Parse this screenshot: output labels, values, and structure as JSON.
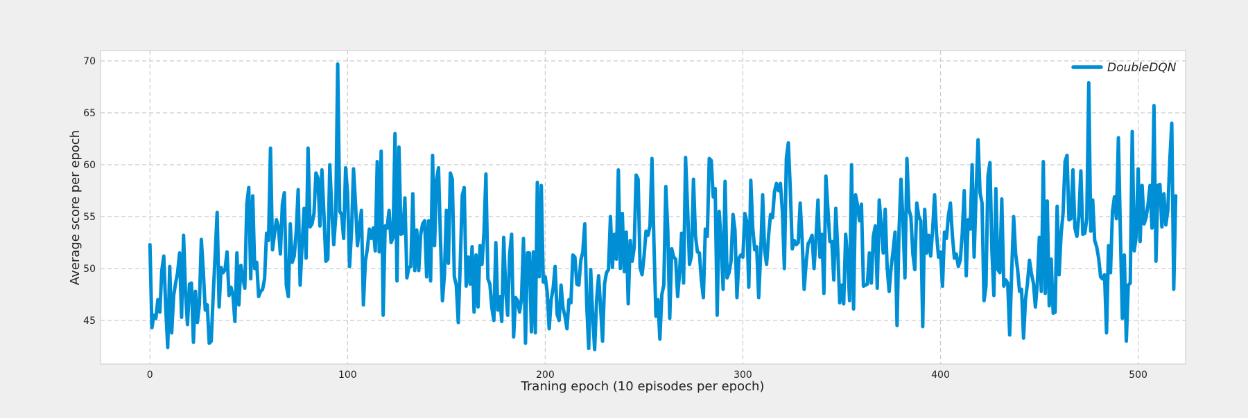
{
  "chart_data": {
    "type": "line",
    "title": "",
    "xlabel": "Traning epoch (10 episodes per epoch)",
    "ylabel": "Average score per epoch",
    "xlim": [
      -25,
      524
    ],
    "ylim": [
      40.8,
      71
    ],
    "xticks": [
      0,
      100,
      200,
      300,
      400,
      500
    ],
    "yticks": [
      45,
      50,
      55,
      60,
      65,
      70
    ],
    "grid": true,
    "legend_position": "top-right",
    "series": [
      {
        "name": "DoubleDQN",
        "color": "#008fd5",
        "x_start": 0,
        "x_step": 1,
        "values": [
          52.3,
          44.3,
          45.5,
          45.2,
          47.0,
          45.8,
          49.8,
          51.2,
          46.2,
          42.4,
          50.2,
          43.8,
          47.4,
          48.6,
          49.6,
          51.5,
          45.3,
          53.2,
          47.7,
          44.6,
          48.5,
          48.6,
          42.9,
          47.8,
          44.8,
          46.5,
          52.8,
          49.7,
          46.0,
          46.5,
          42.8,
          43.0,
          47.4,
          51.3,
          55.4,
          46.3,
          50.1,
          49.6,
          49.9,
          51.6,
          47.4,
          48.2,
          47.4,
          44.9,
          51.5,
          46.5,
          50.3,
          49.1,
          48.1,
          56.2,
          57.8,
          49.0,
          57.0,
          50.0,
          50.6,
          47.3,
          47.8,
          48.0,
          49.0,
          53.4,
          52.7,
          61.6,
          51.8,
          53.3,
          54.7,
          54.0,
          51.4,
          56.2,
          57.3,
          48.4,
          47.3,
          54.3,
          50.6,
          51.2,
          53.5,
          57.6,
          48.4,
          52.4,
          55.8,
          51.0,
          61.6,
          54.0,
          54.3,
          55.3,
          59.2,
          58.7,
          54.1,
          59.5,
          55.4,
          50.7,
          50.9,
          60.0,
          55.7,
          52.3,
          55.0,
          69.7,
          55.5,
          55.2,
          52.9,
          59.7,
          57.2,
          50.2,
          53.6,
          59.6,
          56.3,
          52.2,
          54.0,
          55.6,
          46.5,
          50.7,
          51.9,
          53.8,
          52.9,
          53.9,
          51.7,
          60.3,
          51.6,
          61.3,
          45.5,
          54.1,
          53.9,
          55.6,
          52.5,
          53.0,
          63.0,
          48.8,
          61.7,
          53.3,
          53.4,
          56.8,
          49.1,
          50.1,
          50.2,
          57.2,
          49.8,
          53.7,
          49.8,
          53.3,
          54.3,
          54.6,
          49.2,
          54.6,
          48.8,
          60.9,
          52.2,
          58.5,
          59.7,
          52.8,
          46.9,
          49.4,
          55.6,
          50.5,
          59.2,
          58.6,
          49.2,
          48.4,
          44.8,
          50.5,
          57.0,
          57.8,
          48.3,
          51.1,
          48.5,
          52.1,
          45.8,
          51.3,
          46.3,
          52.2,
          50.4,
          53.4,
          59.1,
          49.0,
          48.5,
          46.2,
          45.0,
          52.5,
          46.0,
          47.3,
          44.9,
          53.0,
          47.8,
          45.5,
          51.4,
          53.3,
          43.4,
          47.2,
          46.9,
          45.8,
          47.1,
          52.9,
          42.8,
          51.5,
          51.5,
          43.9,
          51.6,
          43.8,
          58.3,
          49.2,
          58.0,
          48.7,
          49.2,
          47.7,
          44.2,
          47.0,
          48.1,
          50.2,
          45.6,
          45.0,
          48.4,
          46.2,
          45.4,
          44.2,
          47.0,
          46.7,
          51.3,
          51.1,
          48.5,
          48.4,
          50.8,
          51.6,
          54.3,
          46.5,
          42.3,
          49.9,
          45.4,
          42.2,
          47.0,
          49.3,
          46.3,
          43.0,
          48.5,
          49.6,
          49.9,
          55.0,
          50.1,
          53.3,
          50.9,
          59.5,
          50.0,
          55.3,
          49.7,
          53.5,
          46.6,
          52.7,
          50.7,
          52.0,
          59.0,
          58.6,
          50.1,
          49.4,
          51.2,
          53.6,
          53.2,
          54.1,
          60.6,
          52.5,
          45.4,
          47.0,
          43.2,
          47.5,
          48.4,
          57.9,
          53.8,
          45.2,
          51.9,
          51.1,
          50.9,
          47.3,
          49.7,
          53.4,
          48.6,
          60.7,
          56.0,
          50.4,
          51.2,
          58.6,
          53.2,
          51.6,
          51.5,
          48.9,
          47.2,
          53.8,
          53.1,
          60.6,
          60.4,
          56.9,
          57.7,
          45.5,
          55.5,
          52.6,
          48.0,
          58.4,
          49.1,
          49.6,
          50.7,
          55.2,
          53.7,
          47.2,
          51.0,
          51.3,
          51.1,
          55.3,
          54.5,
          48.2,
          58.5,
          53.9,
          51.8,
          52.1,
          47.2,
          51.4,
          57.1,
          51.8,
          50.4,
          53.2,
          55.2,
          54.9,
          57.4,
          58.2,
          57.5,
          58.2,
          55.5,
          50.0,
          60.6,
          62.1,
          57.6,
          51.9,
          52.7,
          52.3,
          52.5,
          56.3,
          52.7,
          48.0,
          50.5,
          52.4,
          52.7,
          53.2,
          50.0,
          53.0,
          56.6,
          51.1,
          53.3,
          47.6,
          58.9,
          55.8,
          52.6,
          52.6,
          48.9,
          55.8,
          51.8,
          46.7,
          48.4,
          46.6,
          53.3,
          51.0,
          46.9,
          60.0,
          46.1,
          57.1,
          56.1,
          54.6,
          56.2,
          48.3,
          48.4,
          48.5,
          51.5,
          48.6,
          53.1,
          54.1,
          48.1,
          56.6,
          54.1,
          51.5,
          55.7,
          50.1,
          47.8,
          50.1,
          51.7,
          53.5,
          44.5,
          53.6,
          58.6,
          54.5,
          49.1,
          60.6,
          55.7,
          55.0,
          51.4,
          49.9,
          56.3,
          55.0,
          54.6,
          44.4,
          55.7,
          51.5,
          53.2,
          51.2,
          53.7,
          57.1,
          53.3,
          51.1,
          51.6,
          48.3,
          53.5,
          52.9,
          55.1,
          56.3,
          53.2,
          51.0,
          51.4,
          50.2,
          50.8,
          53.4,
          57.5,
          49.3,
          54.7,
          53.8,
          60.0,
          51.1,
          57.3,
          62.4,
          57.3,
          56.3,
          46.9,
          48.3,
          58.9,
          60.2,
          51.7,
          47.4,
          57.7,
          49.9,
          49.6,
          56.7,
          48.3,
          48.9,
          48.6,
          43.6,
          49.6,
          55.0,
          51.4,
          49.9,
          47.8,
          48.0,
          43.3,
          47.0,
          48.6,
          50.8,
          49.5,
          48.6,
          46.3,
          48.7,
          53.0,
          47.8,
          60.3,
          47.6,
          56.5,
          46.4,
          50.9,
          45.7,
          45.8,
          56.0,
          49.4,
          53.3,
          55.3,
          60.3,
          60.9,
          54.7,
          54.8,
          59.5,
          53.9,
          53.1,
          55.1,
          59.4,
          53.3,
          53.4,
          54.8,
          67.9,
          53.6,
          56.6,
          52.7,
          52.1,
          51.0,
          49.2,
          49.0,
          49.4,
          43.8,
          52.2,
          49.6,
          55.5,
          56.9,
          54.8,
          62.6,
          53.5,
          45.2,
          51.3,
          43.0,
          48.4,
          48.6,
          63.2,
          51.7,
          53.1,
          59.6,
          52.6,
          58.0,
          54.3,
          54.9,
          56.2,
          58.0,
          53.9,
          65.7,
          50.7,
          58.0,
          58.1,
          54.0,
          57.2,
          54.2,
          55.6,
          60.4,
          64.0,
          48.0,
          57.0
        ]
      }
    ]
  }
}
